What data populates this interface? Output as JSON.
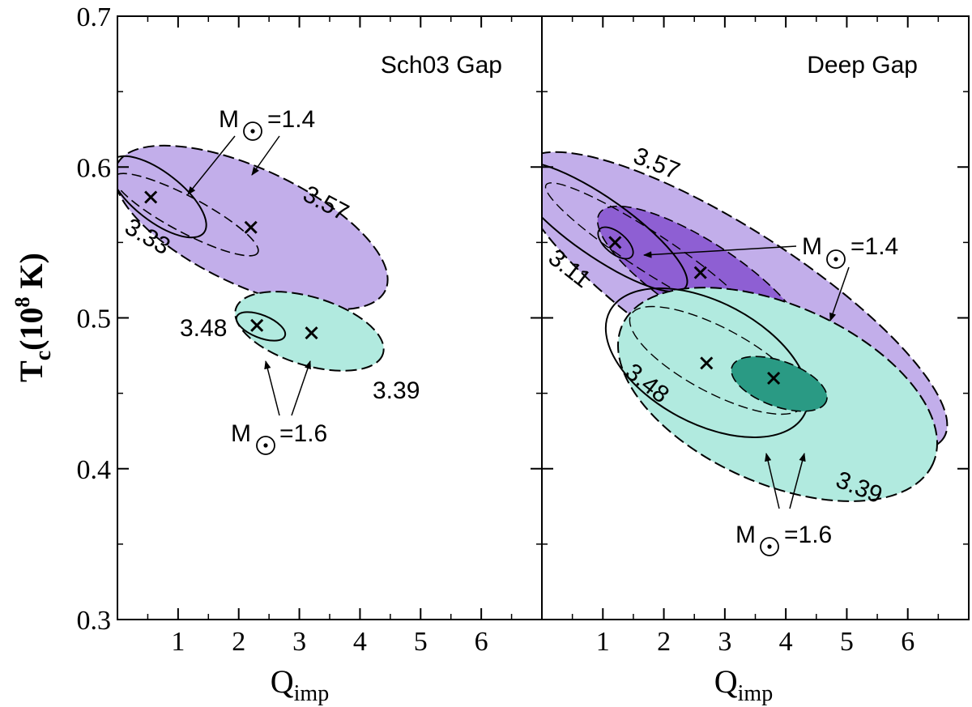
{
  "chart_data": [
    {
      "type": "scatter",
      "title": "Sch03 Gap",
      "xlabel": "Q",
      "xlabel_sub": "imp",
      "ylabel": "T",
      "ylabel_sub": "c",
      "ylabel_unit_prefix": "(10",
      "ylabel_unit_exp": "8",
      "ylabel_unit_suffix": " K)",
      "xlim": [
        0,
        7
      ],
      "ylim": [
        0.3,
        0.7
      ],
      "xticks": [
        1,
        2,
        3,
        4,
        5,
        6
      ],
      "yticks": [
        0.3,
        0.4,
        0.5,
        0.6,
        0.7
      ],
      "ytick_labels": [
        "0.3",
        "0.4",
        "0.5",
        "0.6",
        "0.7"
      ],
      "best_fit_points": [
        {
          "x": 0.55,
          "y": 0.58
        },
        {
          "x": 2.2,
          "y": 0.56
        },
        {
          "x": 2.3,
          "y": 0.495
        },
        {
          "x": 3.2,
          "y": 0.49
        }
      ],
      "contours": [
        {
          "mass": 1.4,
          "level": "3.57",
          "style": "dashed",
          "fill": "#c2aeea"
        },
        {
          "mass": 1.4,
          "level": "3.33",
          "style": "solid",
          "fill": "none"
        },
        {
          "mass": 1.6,
          "level": "3.39",
          "style": "dashed",
          "fill": "#b1eadf"
        },
        {
          "mass": 1.6,
          "level": "3.48",
          "style": "solid",
          "fill": "none"
        }
      ],
      "annotations": [
        {
          "text_main": "M",
          "text_sub": "⊙",
          "text_eq": "=1.4",
          "text_raw": "M⊙=1.4"
        },
        {
          "text_main": "M",
          "text_sub": "⊙",
          "text_eq": "=1.6",
          "text_raw": "M⊙=1.6"
        }
      ],
      "contour_labels": [
        "3.57",
        "3.33",
        "3.48",
        "3.39"
      ]
    },
    {
      "type": "scatter",
      "title": "Deep Gap",
      "xlabel": "Q",
      "xlabel_sub": "imp",
      "xlim": [
        0,
        7
      ],
      "ylim": [
        0.3,
        0.7
      ],
      "xticks": [
        1,
        2,
        3,
        4,
        5,
        6
      ],
      "best_fit_points": [
        {
          "x": 1.2,
          "y": 0.55
        },
        {
          "x": 2.6,
          "y": 0.53
        },
        {
          "x": 2.7,
          "y": 0.47
        },
        {
          "x": 3.8,
          "y": 0.46
        }
      ],
      "contours": [
        {
          "mass": 1.4,
          "level": "3.57",
          "style": "dashed",
          "fill": "#c2aeea"
        },
        {
          "mass": 1.4,
          "level": "3.11",
          "style": "solid",
          "fill": "#8e5fd3"
        },
        {
          "mass": 1.6,
          "level": "3.39",
          "style": "dashed",
          "fill": "#b1eadf"
        },
        {
          "mass": 1.6,
          "level": "3.48",
          "style": "solid",
          "fill": "#2a9a84"
        }
      ],
      "annotations": [
        {
          "text_main": "M",
          "text_sub": "⊙",
          "text_eq": "=1.4",
          "text_raw": "M⊙=1.4"
        },
        {
          "text_main": "M",
          "text_sub": "⊙",
          "text_eq": "=1.6",
          "text_raw": "M⊙=1.6"
        }
      ],
      "contour_labels": [
        "3.57",
        "3.11",
        "3.48",
        "3.39"
      ]
    }
  ],
  "colors": {
    "purple_light": "#c2aeea",
    "purple_dark": "#8e5fd3",
    "teal_light": "#b1eadf",
    "teal_dark": "#2a9a84",
    "ink": "#000000"
  }
}
